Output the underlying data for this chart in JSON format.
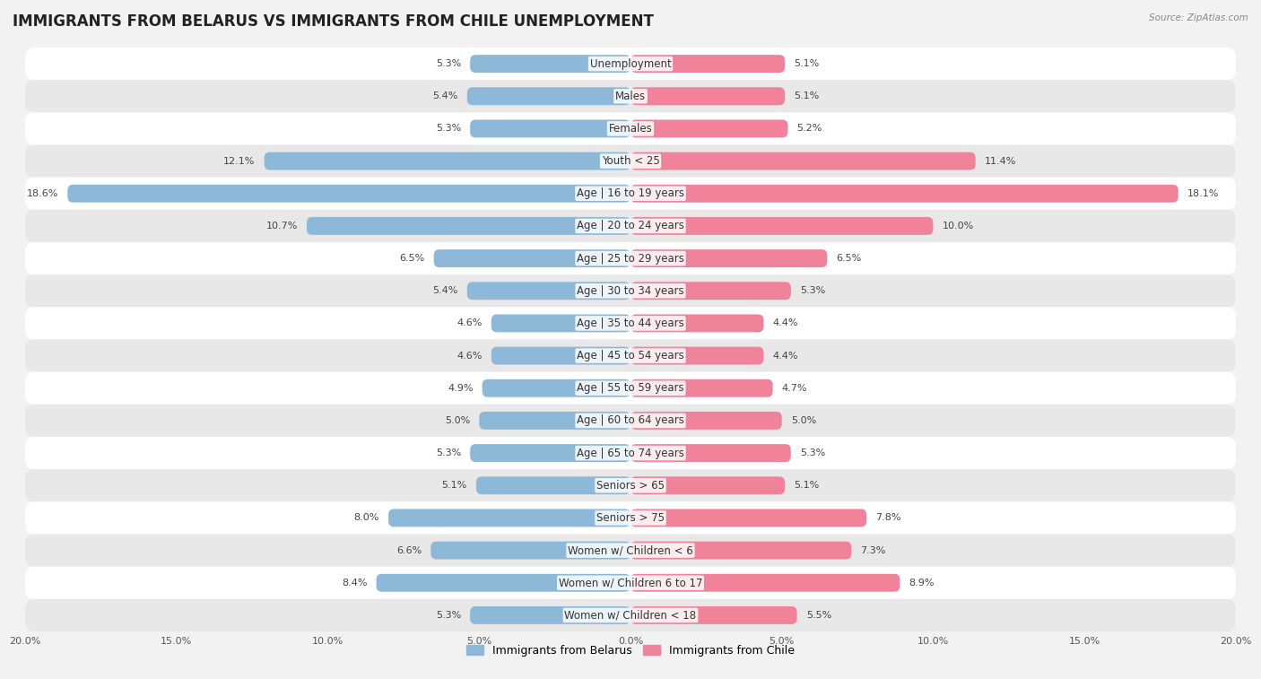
{
  "title": "IMMIGRANTS FROM BELARUS VS IMMIGRANTS FROM CHILE UNEMPLOYMENT",
  "source": "Source: ZipAtlas.com",
  "categories": [
    "Unemployment",
    "Males",
    "Females",
    "Youth < 25",
    "Age | 16 to 19 years",
    "Age | 20 to 24 years",
    "Age | 25 to 29 years",
    "Age | 30 to 34 years",
    "Age | 35 to 44 years",
    "Age | 45 to 54 years",
    "Age | 55 to 59 years",
    "Age | 60 to 64 years",
    "Age | 65 to 74 years",
    "Seniors > 65",
    "Seniors > 75",
    "Women w/ Children < 6",
    "Women w/ Children 6 to 17",
    "Women w/ Children < 18"
  ],
  "belarus_values": [
    5.3,
    5.4,
    5.3,
    12.1,
    18.6,
    10.7,
    6.5,
    5.4,
    4.6,
    4.6,
    4.9,
    5.0,
    5.3,
    5.1,
    8.0,
    6.6,
    8.4,
    5.3
  ],
  "chile_values": [
    5.1,
    5.1,
    5.2,
    11.4,
    18.1,
    10.0,
    6.5,
    5.3,
    4.4,
    4.4,
    4.7,
    5.0,
    5.3,
    5.1,
    7.8,
    7.3,
    8.9,
    5.5
  ],
  "belarus_color": "#8db8d8",
  "chile_color": "#f0829a",
  "axis_max": 20.0,
  "background_color": "#f2f2f2",
  "row_color_odd": "#ffffff",
  "row_color_even": "#e8e8e8",
  "title_fontsize": 12,
  "label_fontsize": 8.5,
  "value_fontsize": 8,
  "legend_belarus": "Immigrants from Belarus",
  "legend_chile": "Immigrants from Chile"
}
